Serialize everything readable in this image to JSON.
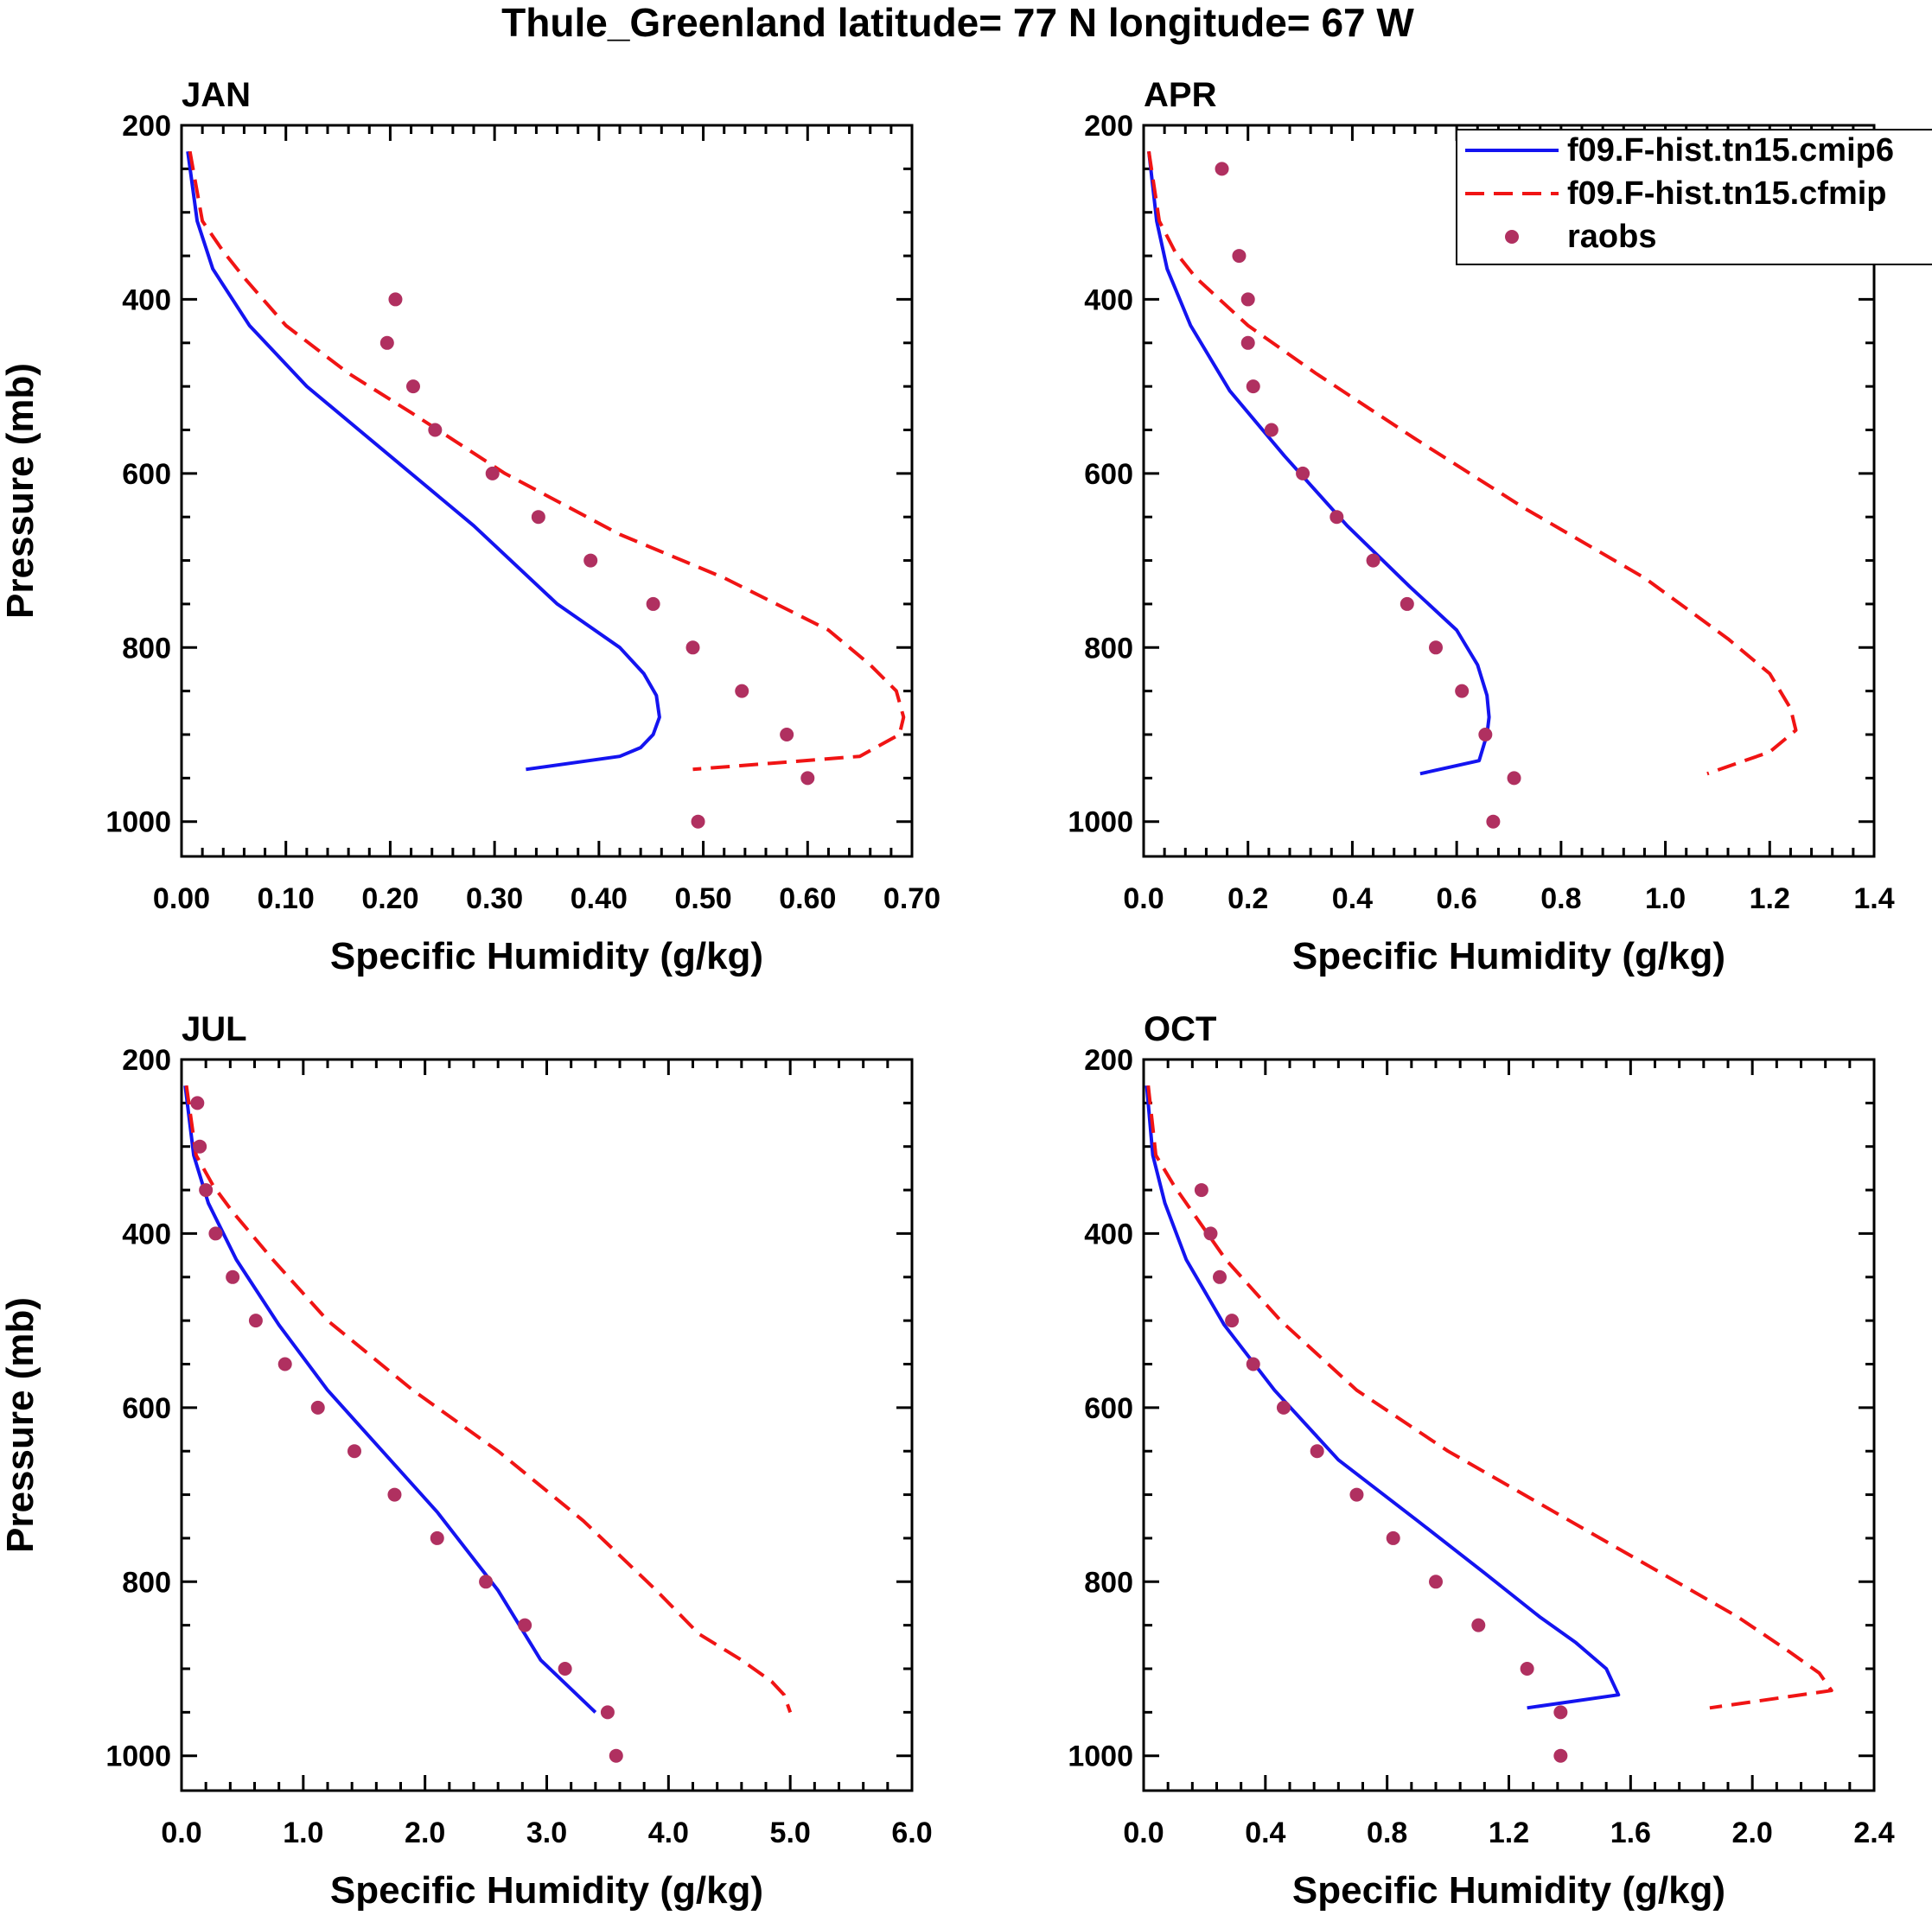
{
  "title": "Thule_Greenland  latitude= 77 N longitude= 67 W",
  "colors": {
    "series1": "#1414f0",
    "series2": "#f01414",
    "obs": "#b03060",
    "axis": "#000000"
  },
  "legend": [
    "f09.F-hist.tn15.cmip6",
    "f09.F-hist.tn15.cfmip",
    "raobs"
  ],
  "chart_data": [
    {
      "type": "line",
      "title": "JAN",
      "xlabel": "Specific Humidity (g/kg)",
      "ylabel": "Pressure (mb)",
      "xlim": [
        0,
        0.7
      ],
      "ylim": [
        200,
        1040
      ],
      "xticks": [
        0,
        0.1,
        0.2,
        0.3,
        0.4,
        0.5,
        0.6,
        0.7
      ],
      "xtick_labels": [
        "0.00",
        "0.10",
        "0.20",
        "0.30",
        "0.40",
        "0.50",
        "0.60",
        "0.70"
      ],
      "yticks": [
        200,
        400,
        600,
        800,
        1000
      ],
      "ytick_labels": [
        "200",
        "400",
        "600",
        "800",
        "1000"
      ],
      "series": [
        {
          "name": "f09.F-hist.tn15.cmip6",
          "style": "solid",
          "x": [
            0.006,
            0.015,
            0.03,
            0.065,
            0.12,
            0.2,
            0.28,
            0.36,
            0.42,
            0.443,
            0.455,
            0.458,
            0.452,
            0.44,
            0.42,
            0.33
          ],
          "y": [
            230,
            310,
            365,
            430,
            500,
            580,
            660,
            750,
            800,
            830,
            855,
            880,
            900,
            915,
            925,
            940
          ]
        },
        {
          "name": "f09.F-hist.tn15.cfmip",
          "style": "dashed",
          "x": [
            0.008,
            0.02,
            0.04,
            0.06,
            0.1,
            0.16,
            0.22,
            0.31,
            0.42,
            0.52,
            0.62,
            0.66,
            0.685,
            0.692,
            0.688,
            0.65,
            0.49
          ],
          "y": [
            230,
            310,
            345,
            375,
            430,
            485,
            530,
            600,
            670,
            720,
            780,
            820,
            850,
            880,
            900,
            925,
            940
          ]
        }
      ],
      "points": {
        "name": "raobs",
        "x": [
          0.205,
          0.197,
          0.222,
          0.243,
          0.298,
          0.342,
          0.392,
          0.452,
          0.49,
          0.537,
          0.58,
          0.6,
          0.495
        ],
        "y": [
          400,
          450,
          500,
          550,
          600,
          650,
          700,
          750,
          800,
          850,
          900,
          950,
          1000
        ]
      }
    },
    {
      "type": "line",
      "title": "APR",
      "xlabel": "Specific Humidity (g/kg)",
      "ylabel": "",
      "xlim": [
        0,
        1.4
      ],
      "ylim": [
        200,
        1040
      ],
      "xticks": [
        0,
        0.2,
        0.4,
        0.6,
        0.8,
        1.0,
        1.2,
        1.4
      ],
      "xtick_labels": [
        "0.0",
        "0.2",
        "0.4",
        "0.6",
        "0.8",
        "1.0",
        "1.2",
        "1.4"
      ],
      "yticks": [
        200,
        400,
        600,
        800,
        1000
      ],
      "ytick_labels": [
        "200",
        "400",
        "600",
        "800",
        "1000"
      ],
      "series": [
        {
          "name": "f09.F-hist.tn15.cmip6",
          "style": "solid",
          "x": [
            0.01,
            0.025,
            0.045,
            0.09,
            0.165,
            0.27,
            0.39,
            0.51,
            0.6,
            0.64,
            0.658,
            0.662,
            0.658,
            0.643,
            0.53
          ],
          "y": [
            230,
            310,
            365,
            430,
            505,
            580,
            660,
            730,
            780,
            820,
            855,
            880,
            900,
            930,
            945
          ]
        },
        {
          "name": "f09.F-hist.tn15.cfmip",
          "style": "dashed",
          "x": [
            0.01,
            0.03,
            0.06,
            0.1,
            0.2,
            0.33,
            0.52,
            0.73,
            0.96,
            1.12,
            1.2,
            1.24,
            1.25,
            1.2,
            1.08
          ],
          "y": [
            230,
            310,
            345,
            375,
            430,
            485,
            560,
            640,
            720,
            790,
            830,
            870,
            895,
            920,
            945
          ]
        }
      ],
      "points": {
        "name": "raobs",
        "x": [
          0.15,
          0.183,
          0.2,
          0.2,
          0.21,
          0.245,
          0.305,
          0.37,
          0.44,
          0.505,
          0.56,
          0.61,
          0.655,
          0.71,
          0.67
        ],
        "y": [
          250,
          350,
          400,
          450,
          500,
          550,
          600,
          650,
          700,
          750,
          800,
          850,
          900,
          950,
          1000
        ]
      }
    },
    {
      "type": "line",
      "title": "JUL",
      "xlabel": "Specific Humidity (g/kg)",
      "ylabel": "Pressure (mb)",
      "xlim": [
        0,
        6
      ],
      "ylim": [
        200,
        1040
      ],
      "xticks": [
        0,
        1,
        2,
        3,
        4,
        5,
        6
      ],
      "xtick_labels": [
        "0.0",
        "1.0",
        "2.0",
        "3.0",
        "4.0",
        "5.0",
        "6.0"
      ],
      "yticks": [
        200,
        400,
        600,
        800,
        1000
      ],
      "ytick_labels": [
        "200",
        "400",
        "600",
        "800",
        "1000"
      ],
      "series": [
        {
          "name": "f09.F-hist.tn15.cmip6",
          "style": "solid",
          "x": [
            0.03,
            0.1,
            0.22,
            0.45,
            0.8,
            1.2,
            1.65,
            2.1,
            2.6,
            2.95,
            3.4
          ],
          "y": [
            230,
            310,
            365,
            430,
            505,
            580,
            650,
            720,
            810,
            890,
            950
          ]
        },
        {
          "name": "f09.F-hist.tn15.cfmip",
          "style": "dashed",
          "x": [
            0.04,
            0.12,
            0.26,
            0.42,
            0.75,
            1.2,
            1.9,
            2.6,
            3.3,
            3.9,
            4.25,
            4.6,
            4.85,
            4.95,
            5.0
          ],
          "y": [
            230,
            310,
            345,
            375,
            430,
            500,
            580,
            650,
            730,
            810,
            860,
            890,
            915,
            930,
            950
          ]
        }
      ],
      "points": {
        "name": "raobs",
        "x": [
          0.13,
          0.15,
          0.2,
          0.28,
          0.42,
          0.61,
          0.85,
          1.12,
          1.42,
          1.75,
          2.1,
          2.5,
          2.82,
          3.15,
          3.5,
          3.57
        ],
        "y": [
          250,
          300,
          350,
          400,
          450,
          500,
          550,
          600,
          650,
          700,
          750,
          800,
          850,
          900,
          950,
          1000
        ]
      }
    },
    {
      "type": "line",
      "title": "OCT",
      "xlabel": "Specific Humidity (g/kg)",
      "ylabel": "",
      "xlim": [
        0,
        2.4
      ],
      "ylim": [
        200,
        1040
      ],
      "xticks": [
        0,
        0.4,
        0.8,
        1.2,
        1.6,
        2.0,
        2.4
      ],
      "xtick_labels": [
        "0.0",
        "0.4",
        "0.8",
        "1.2",
        "1.6",
        "2.0",
        "2.4"
      ],
      "yticks": [
        200,
        400,
        600,
        800,
        1000
      ],
      "ytick_labels": [
        "200",
        "400",
        "600",
        "800",
        "1000"
      ],
      "series": [
        {
          "name": "f09.F-hist.tn15.cmip6",
          "style": "solid",
          "x": [
            0.01,
            0.03,
            0.07,
            0.14,
            0.265,
            0.43,
            0.64,
            0.9,
            1.12,
            1.3,
            1.42,
            1.52,
            1.56,
            1.26
          ],
          "y": [
            230,
            310,
            365,
            430,
            505,
            580,
            660,
            730,
            790,
            840,
            870,
            900,
            930,
            945
          ]
        },
        {
          "name": "f09.F-hist.tn15.cfmip",
          "style": "dashed",
          "x": [
            0.015,
            0.04,
            0.1,
            0.16,
            0.27,
            0.45,
            0.7,
            1.0,
            1.35,
            1.7,
            1.95,
            2.12,
            2.22,
            2.26,
            1.86
          ],
          "y": [
            230,
            310,
            345,
            375,
            430,
            500,
            580,
            650,
            720,
            790,
            840,
            880,
            905,
            925,
            945
          ]
        }
      ],
      "points": {
        "name": "raobs",
        "x": [
          0.19,
          0.22,
          0.25,
          0.29,
          0.36,
          0.46,
          0.57,
          0.7,
          0.82,
          0.96,
          1.1,
          1.26,
          1.37,
          1.37
        ],
        "y": [
          350,
          400,
          450,
          500,
          550,
          600,
          650,
          700,
          750,
          800,
          850,
          900,
          950,
          1000
        ]
      }
    }
  ]
}
